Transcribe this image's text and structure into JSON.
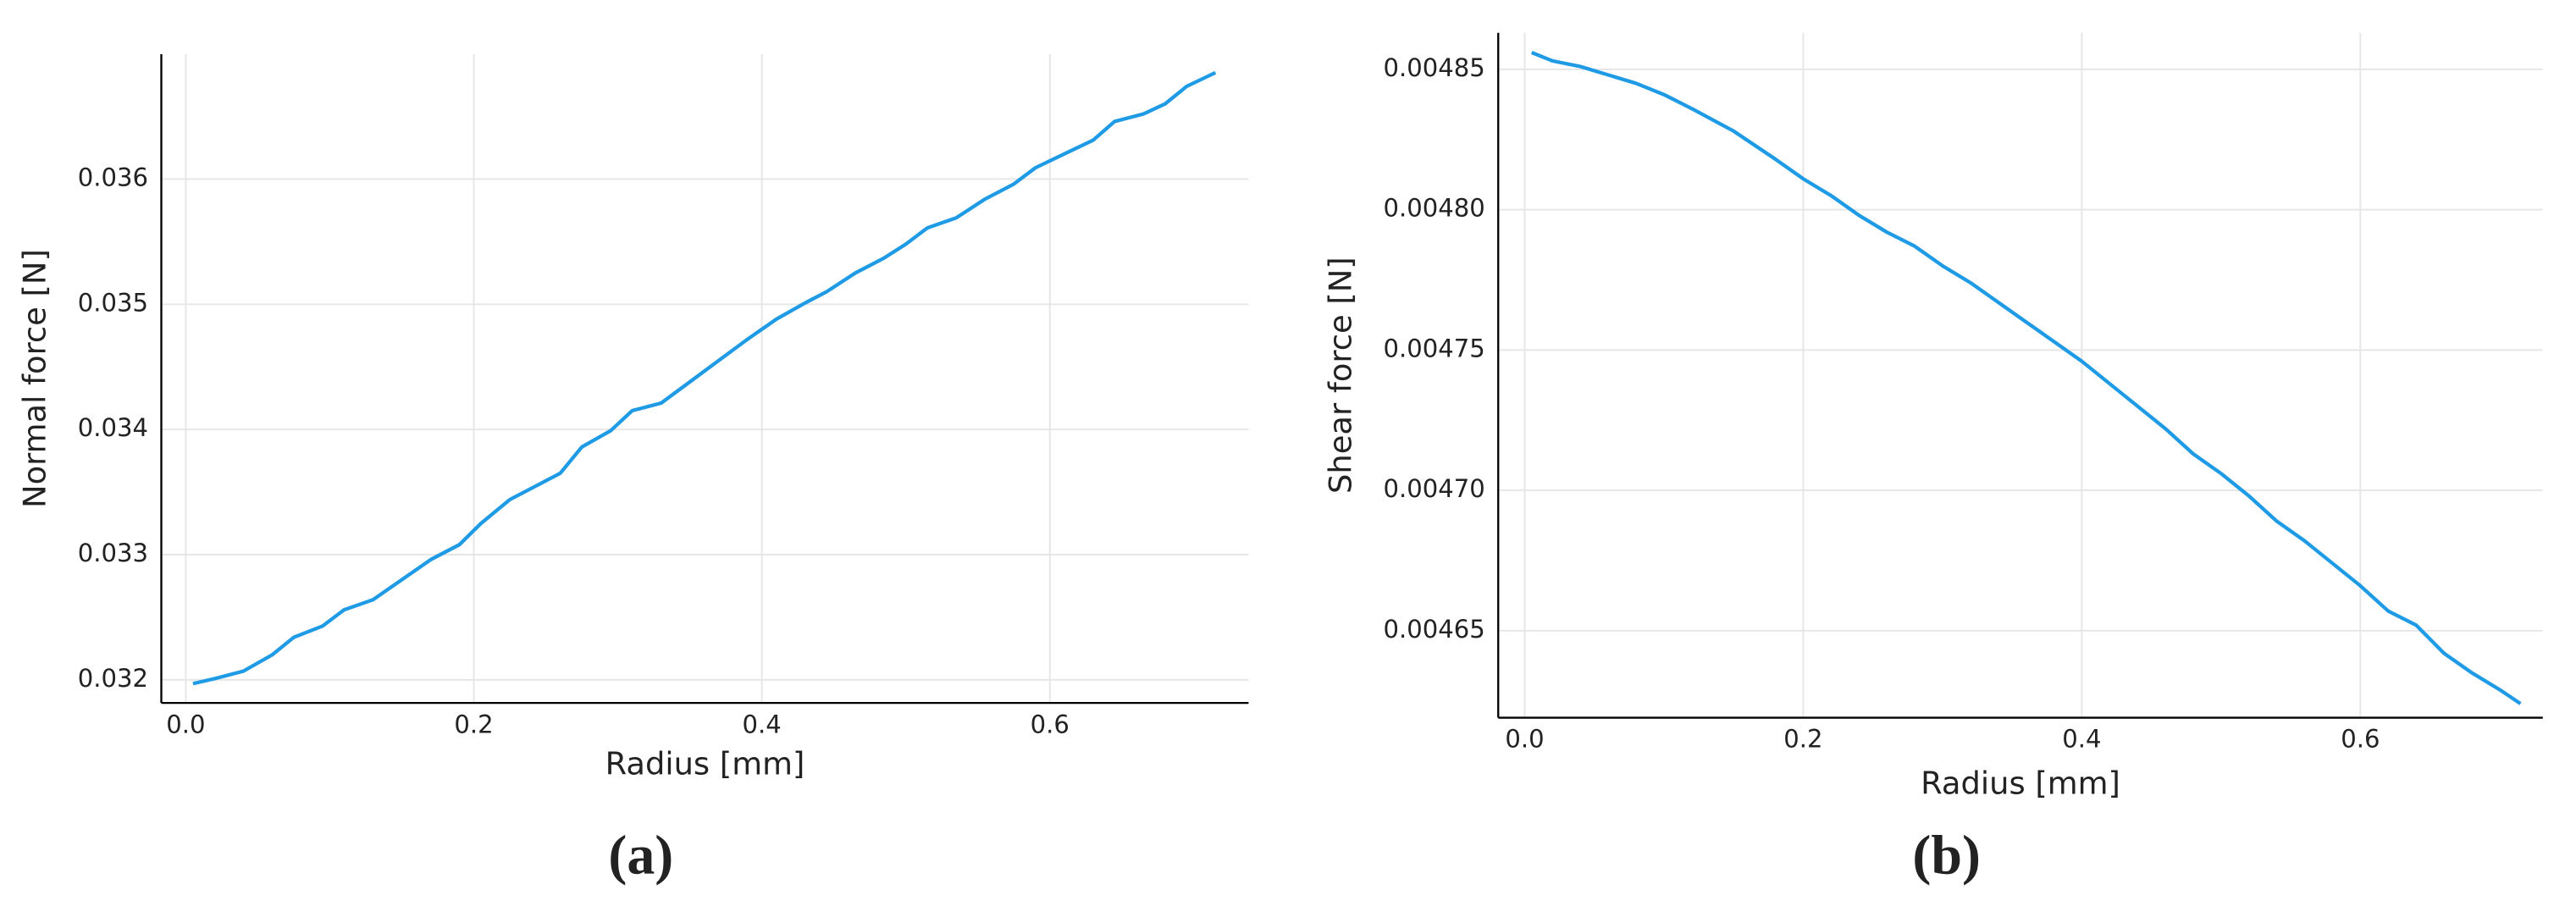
{
  "chart_data": [
    {
      "type": "line",
      "caption": "(a)",
      "x_label": "Radius [mm]",
      "y_label": "Normal force [N]",
      "grid": true,
      "xlim": [
        -0.017,
        0.738
      ],
      "ylim": [
        0.031816,
        0.036997
      ],
      "xticks": [
        {
          "value": 0,
          "label": "0.0"
        },
        0.2,
        0.4,
        0.6
      ],
      "yticks": [
        0.032,
        0.033,
        0.034,
        0.035,
        0.036
      ],
      "x": [
        0.005,
        0.02,
        0.04,
        0.06,
        0.075,
        0.095,
        0.11,
        0.13,
        0.15,
        0.17,
        0.19,
        0.205,
        0.225,
        0.245,
        0.26,
        0.275,
        0.295,
        0.31,
        0.33,
        0.35,
        0.37,
        0.39,
        0.41,
        0.43,
        0.445,
        0.465,
        0.485,
        0.5,
        0.515,
        0.535,
        0.555,
        0.575,
        0.59,
        0.61,
        0.63,
        0.645,
        0.665,
        0.68,
        0.695,
        0.715
      ],
      "series": [
        {
          "color": "#1f9be6",
          "values": [
            0.03197,
            0.03201,
            0.03207,
            0.0322,
            0.03234,
            0.03243,
            0.03256,
            0.03264,
            0.0328,
            0.03296,
            0.03308,
            0.03325,
            0.03344,
            0.03356,
            0.03365,
            0.03386,
            0.03399,
            0.03415,
            0.03421,
            0.03438,
            0.03455,
            0.03472,
            0.03488,
            0.03501,
            0.0351,
            0.03525,
            0.03537,
            0.03548,
            0.03561,
            0.03569,
            0.03584,
            0.03596,
            0.03609,
            0.0362,
            0.03631,
            0.03646,
            0.03652,
            0.0366,
            0.03674,
            0.03685
          ]
        }
      ]
    },
    {
      "type": "line",
      "caption": "(b)",
      "x_label": "Radius [mm]",
      "y_label": "Shear force [N]",
      "grid": true,
      "xlim": [
        -0.019,
        0.731
      ],
      "ylim": [
        0.004619,
        0.004863
      ],
      "xticks": [
        {
          "value": 0,
          "label": "0.0"
        },
        0.2,
        0.4,
        0.6
      ],
      "yticks": [
        0.00465,
        {
          "value": 0.0047,
          "label": "0.00470"
        },
        0.00475,
        {
          "value": 0.0048,
          "label": "0.00480"
        },
        0.00485
      ],
      "x": [
        0.005,
        0.02,
        0.04,
        0.06,
        0.08,
        0.1,
        0.12,
        0.15,
        0.18,
        0.2,
        0.22,
        0.24,
        0.26,
        0.28,
        0.3,
        0.32,
        0.34,
        0.36,
        0.38,
        0.4,
        0.42,
        0.44,
        0.46,
        0.48,
        0.5,
        0.52,
        0.54,
        0.56,
        0.58,
        0.6,
        0.62,
        0.64,
        0.66,
        0.68,
        0.7,
        0.715
      ],
      "series": [
        {
          "color": "#1f9be6",
          "values": [
            0.004856,
            0.004853,
            0.004851,
            0.004848,
            0.004845,
            0.004841,
            0.004836,
            0.004828,
            0.004818,
            0.004811,
            0.004805,
            0.004798,
            0.004792,
            0.004787,
            0.00478,
            0.004774,
            0.004767,
            0.00476,
            0.004753,
            0.004746,
            0.004738,
            0.00473,
            0.004722,
            0.004713,
            0.004706,
            0.004698,
            0.004689,
            0.004682,
            0.004674,
            0.004666,
            0.004657,
            0.004652,
            0.004642,
            0.004635,
            0.004629,
            0.004624
          ]
        }
      ]
    }
  ]
}
